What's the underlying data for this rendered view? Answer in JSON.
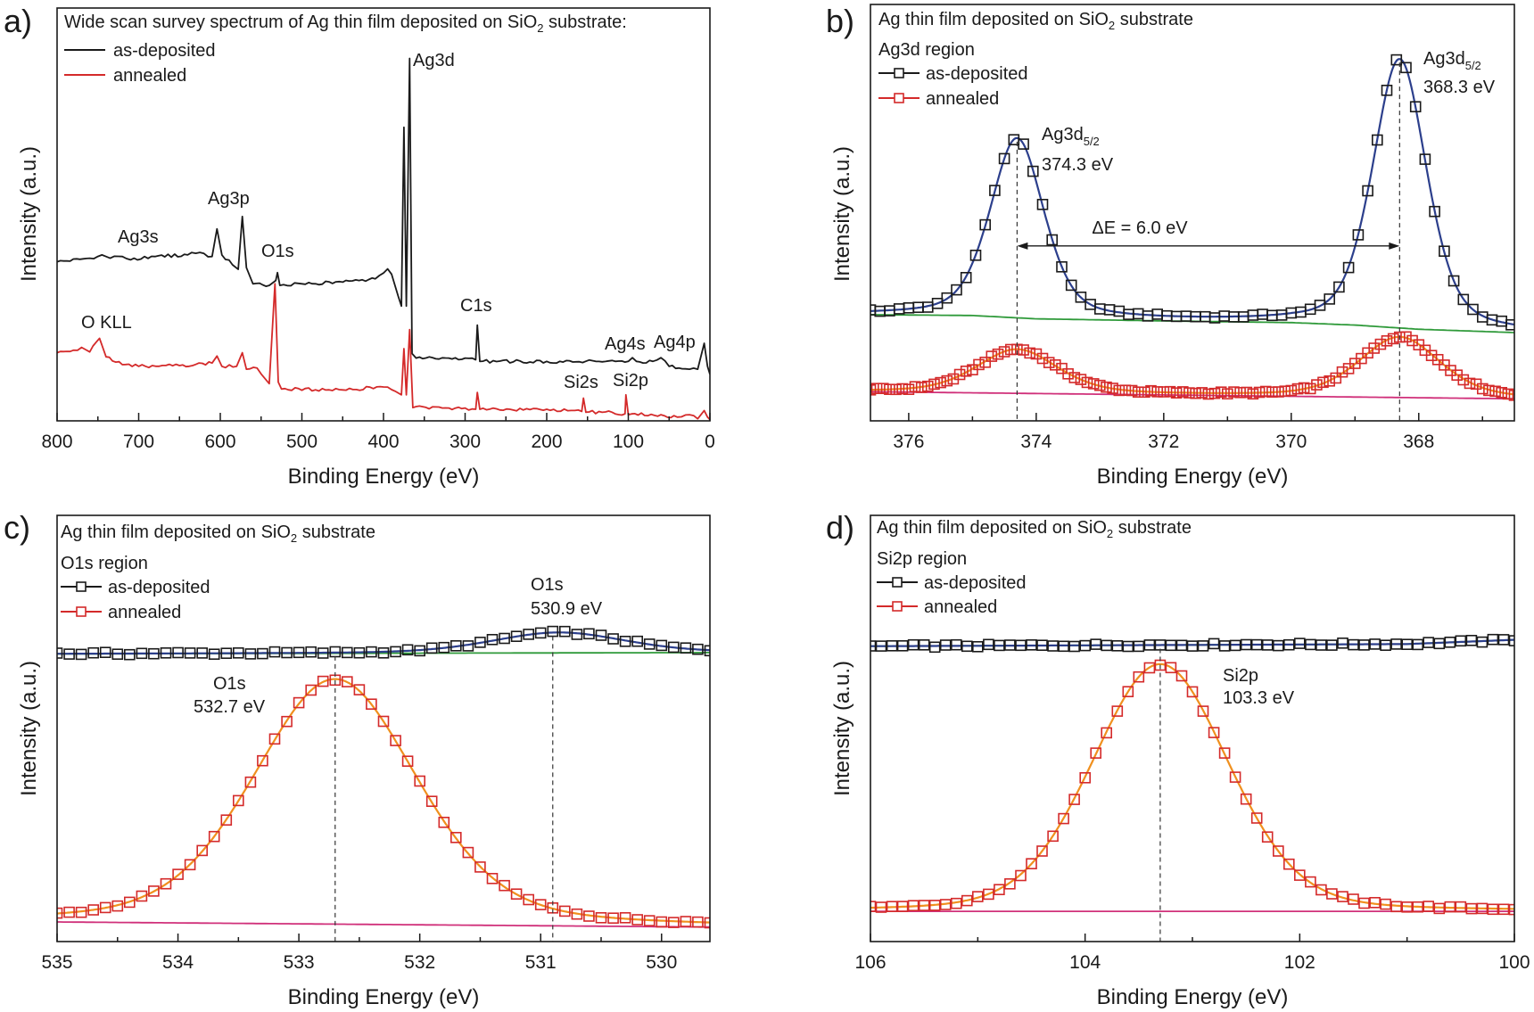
{
  "colors": {
    "as_deposited": "#1a1a1a",
    "annealed": "#d42a2a",
    "fit_as_deposited": "#2c3f8c",
    "fit_annealed": "#f0901e",
    "background_as_deposited": "#2f9a3a",
    "background_annealed": "#d0307a"
  },
  "chart_data": [
    {
      "panel": "a)",
      "type": "line",
      "title": {
        "pre": "Wide scan survey spectrum of Ag thin film deposited on SiO",
        "sub": "2",
        "post": " substrate:"
      },
      "xlabel": "Binding Energy (eV)",
      "ylabel": "Intensity (a.u.)",
      "xlim": [
        800,
        0
      ],
      "ylim": [
        0,
        100
      ],
      "x_ticks": [
        "800",
        "700",
        "600",
        "500",
        "400",
        "300",
        "200",
        "100",
        "0"
      ],
      "x_tick_values": [
        800,
        700,
        600,
        500,
        400,
        300,
        200,
        100,
        0
      ],
      "x_minor_step": 50,
      "legend": [
        {
          "name": "as-deposited"
        },
        {
          "name": "annealed"
        }
      ],
      "series": [
        {
          "name": "as-deposited",
          "points": [
            [
              800,
              38.5
            ],
            [
              760,
              39.4
            ],
            [
              745,
              40.2
            ],
            [
              735,
              39.4
            ],
            [
              720,
              39.8
            ],
            [
              710,
              39.0
            ],
            [
              680,
              39.8
            ],
            [
              640,
              40.2
            ],
            [
              625,
              40.8
            ],
            [
              610,
              39.8
            ],
            [
              604,
              46.5
            ],
            [
              598,
              40.2
            ],
            [
              585,
              37.8
            ],
            [
              578,
              36.7
            ],
            [
              573,
              49.5
            ],
            [
              568,
              37.1
            ],
            [
              560,
              33.2
            ],
            [
              540,
              32.8
            ],
            [
              532,
              34.0
            ],
            [
              530,
              35.9
            ],
            [
              527,
              32.8
            ],
            [
              500,
              33.2
            ],
            [
              450,
              33.6
            ],
            [
              410,
              34.4
            ],
            [
              395,
              36.8
            ],
            [
              390,
              35.5
            ],
            [
              382,
              30.2
            ],
            [
              378,
              27.8
            ],
            [
              375,
              71.1
            ],
            [
              372,
              27.8
            ],
            [
              368,
              87.8
            ],
            [
              365,
              16.3
            ],
            [
              360,
              15.2
            ],
            [
              320,
              15.2
            ],
            [
              300,
              15.2
            ],
            [
              287,
              14.8
            ],
            [
              285,
              23.2
            ],
            [
              282,
              14.4
            ],
            [
              200,
              14.4
            ],
            [
              140,
              14.4
            ],
            [
              100,
              14.4
            ],
            [
              95,
              15.3
            ],
            [
              90,
              14.4
            ],
            [
              70,
              14.4
            ],
            [
              60,
              15.3
            ],
            [
              50,
              13.2
            ],
            [
              30,
              12.6
            ],
            [
              15,
              12.5
            ],
            [
              7,
              18.8
            ],
            [
              3,
              13.2
            ],
            [
              0,
              11.3
            ]
          ]
        },
        {
          "name": "annealed",
          "points": [
            [
              800,
              16.5
            ],
            [
              780,
              17.1
            ],
            [
              770,
              17.8
            ],
            [
              760,
              16.7
            ],
            [
              748,
              20.0
            ],
            [
              740,
              15.5
            ],
            [
              720,
              13.6
            ],
            [
              700,
              13.2
            ],
            [
              650,
              13.4
            ],
            [
              610,
              14.0
            ],
            [
              604,
              15.7
            ],
            [
              598,
              13.2
            ],
            [
              580,
              13.2
            ],
            [
              573,
              16.5
            ],
            [
              568,
              12.5
            ],
            [
              555,
              12.8
            ],
            [
              545,
              10.2
            ],
            [
              540,
              9.0
            ],
            [
              533,
              33.2
            ],
            [
              529,
              9.4
            ],
            [
              525,
              7.7
            ],
            [
              450,
              7.5
            ],
            [
              400,
              8.2
            ],
            [
              385,
              7.1
            ],
            [
              378,
              6.3
            ],
            [
              375,
              17.5
            ],
            [
              372,
              6.3
            ],
            [
              368,
              22.1
            ],
            [
              364,
              3.2
            ],
            [
              300,
              3.1
            ],
            [
              287,
              2.8
            ],
            [
              285,
              6.9
            ],
            [
              282,
              2.8
            ],
            [
              200,
              2.8
            ],
            [
              170,
              2.5
            ],
            [
              157,
              2.3
            ],
            [
              155,
              5.5
            ],
            [
              152,
              2.1
            ],
            [
              120,
              2.1
            ],
            [
              104,
              1.7
            ],
            [
              103,
              6.3
            ],
            [
              100,
              1.5
            ],
            [
              60,
              1.5
            ],
            [
              40,
              0.9
            ],
            [
              25,
              1.5
            ],
            [
              15,
              0.5
            ],
            [
              7,
              2.5
            ],
            [
              3,
              0.9
            ],
            [
              0,
              0.3
            ]
          ]
        }
      ],
      "annotations": [
        "Ag3d",
        "Ag3p",
        "Ag3s",
        "O1s",
        "O KLL",
        "C1s",
        "Ag4s",
        "Ag4p",
        "Si2s",
        "Si2p"
      ]
    },
    {
      "panel": "b)",
      "type": "scatter",
      "title": {
        "pre": "Ag thin film deposited on SiO",
        "sub": "2",
        "post": " substrate"
      },
      "subtitle": "Ag3d region",
      "xlabel": "Binding Energy (eV)",
      "ylabel": "Intensity (a.u.)",
      "xlim": [
        376.6,
        366.5
      ],
      "ylim": [
        0,
        100
      ],
      "x_ticks": [
        "376",
        "374",
        "372",
        "370",
        "368"
      ],
      "x_tick_values": [
        376,
        374,
        372,
        370,
        368
      ],
      "x_minor_step": 1,
      "legend": [
        {
          "name": "as-deposited"
        },
        {
          "name": "annealed"
        }
      ],
      "series": [
        {
          "name": "as-deposited",
          "marker_step": 0.15,
          "background": [
            [
              376.6,
              25.5
            ],
            [
              375,
              25.3
            ],
            [
              374,
              24.5
            ],
            [
              372,
              24.0
            ],
            [
              370,
              23.6
            ],
            [
              369,
              23.0
            ],
            [
              368,
              22.0
            ],
            [
              366.5,
              21.2
            ]
          ],
          "peaks": [
            {
              "center": 374.3,
              "height": 43,
              "fwhm": 1.0,
              "lorentz": 0.4
            },
            {
              "center": 368.3,
              "height": 64.5,
              "fwhm": 1.0,
              "lorentz": 0.4
            }
          ]
        },
        {
          "name": "annealed",
          "marker_step": 0.1,
          "background": [
            [
              376.6,
              7.0
            ],
            [
              366.5,
              5.3
            ]
          ],
          "peaks": [
            {
              "center": 374.3,
              "height": 10.5,
              "fwhm": 1.5,
              "lorentz": 0.4
            },
            {
              "center": 368.3,
              "height": 14.5,
              "fwhm": 1.5,
              "lorentz": 0.4
            }
          ]
        }
      ],
      "reference_lines": [
        374.3,
        368.3
      ],
      "arrow": {
        "from": 374.3,
        "to": 368.3,
        "y": 42,
        "label": "ΔE = 6.0 eV"
      },
      "annotations": [
        {
          "main": "Ag3d",
          "sub": "5/2",
          "value": "374.3 eV"
        },
        {
          "main": "Ag3d",
          "sub": "5/2",
          "value": "368.3 eV"
        }
      ]
    },
    {
      "panel": "c)",
      "type": "scatter",
      "title": {
        "pre": "Ag thin film deposited on SiO",
        "sub": "2",
        "post": " substrate"
      },
      "subtitle": "O1s region",
      "xlabel": "Binding Energy (eV)",
      "ylabel": "Intensity (a.u.)",
      "xlim": [
        535,
        529.6
      ],
      "ylim": [
        0,
        100
      ],
      "x_ticks": [
        "535",
        "534",
        "533",
        "532",
        "531",
        "530"
      ],
      "x_tick_values": [
        535,
        534,
        533,
        532,
        531,
        530
      ],
      "x_minor_step": 0.5,
      "legend": [
        {
          "name": "as-deposited"
        },
        {
          "name": "annealed"
        }
      ],
      "series": [
        {
          "name": "as-deposited",
          "marker_step": 0.1,
          "background": [
            [
              535,
              67.5
            ],
            [
              529.6,
              67.8
            ]
          ],
          "peaks": [
            {
              "center": 530.85,
              "height": 4.8,
              "fwhm": 1.3,
              "lorentz": 0.3
            }
          ]
        },
        {
          "name": "annealed",
          "marker_step": 0.1,
          "background": [
            [
              535,
              4.6
            ],
            [
              529.6,
              3.4
            ]
          ],
          "peaks": [
            {
              "center": 532.7,
              "height": 57.5,
              "fwhm": 1.6,
              "lorentz": 0.3
            }
          ]
        }
      ],
      "reference_lines": [
        532.7,
        530.9
      ],
      "annotations": [
        {
          "main": "O1s",
          "value": "530.9 eV"
        },
        {
          "main": "O1s",
          "value": "532.7 eV"
        }
      ]
    },
    {
      "panel": "d)",
      "type": "scatter",
      "title": {
        "pre": "Ag thin film deposited on SiO",
        "sub": "2",
        "post": " substrate"
      },
      "subtitle": "Si2p region",
      "xlabel": "Binding Energy (eV)",
      "ylabel": "Intensity (a.u.)",
      "xlim": [
        106,
        100
      ],
      "ylim": [
        0,
        100
      ],
      "x_ticks": [
        "106",
        "104",
        "102",
        "100"
      ],
      "x_tick_values": [
        106,
        104,
        102,
        100
      ],
      "x_minor_step": 1,
      "legend": [
        {
          "name": "as-deposited"
        },
        {
          "name": "annealed"
        }
      ],
      "series": [
        {
          "name": "as-deposited",
          "marker_step": 0.1,
          "background": [
            [
              106,
              69.3
            ],
            [
              101,
              69.8
            ],
            [
              100,
              70.8
            ]
          ],
          "peaks": []
        },
        {
          "name": "annealed",
          "marker_step": 0.1,
          "background": [
            [
              106,
              7.1
            ],
            [
              100,
              7.1
            ]
          ],
          "peaks": [
            {
              "center": 103.3,
              "height": 58,
              "fwhm": 1.5,
              "lorentz": 0.2
            }
          ]
        }
      ],
      "reference_lines": [
        103.3
      ],
      "annotations": [
        {
          "main": "Si2p",
          "value": "103.3 eV"
        }
      ]
    }
  ]
}
